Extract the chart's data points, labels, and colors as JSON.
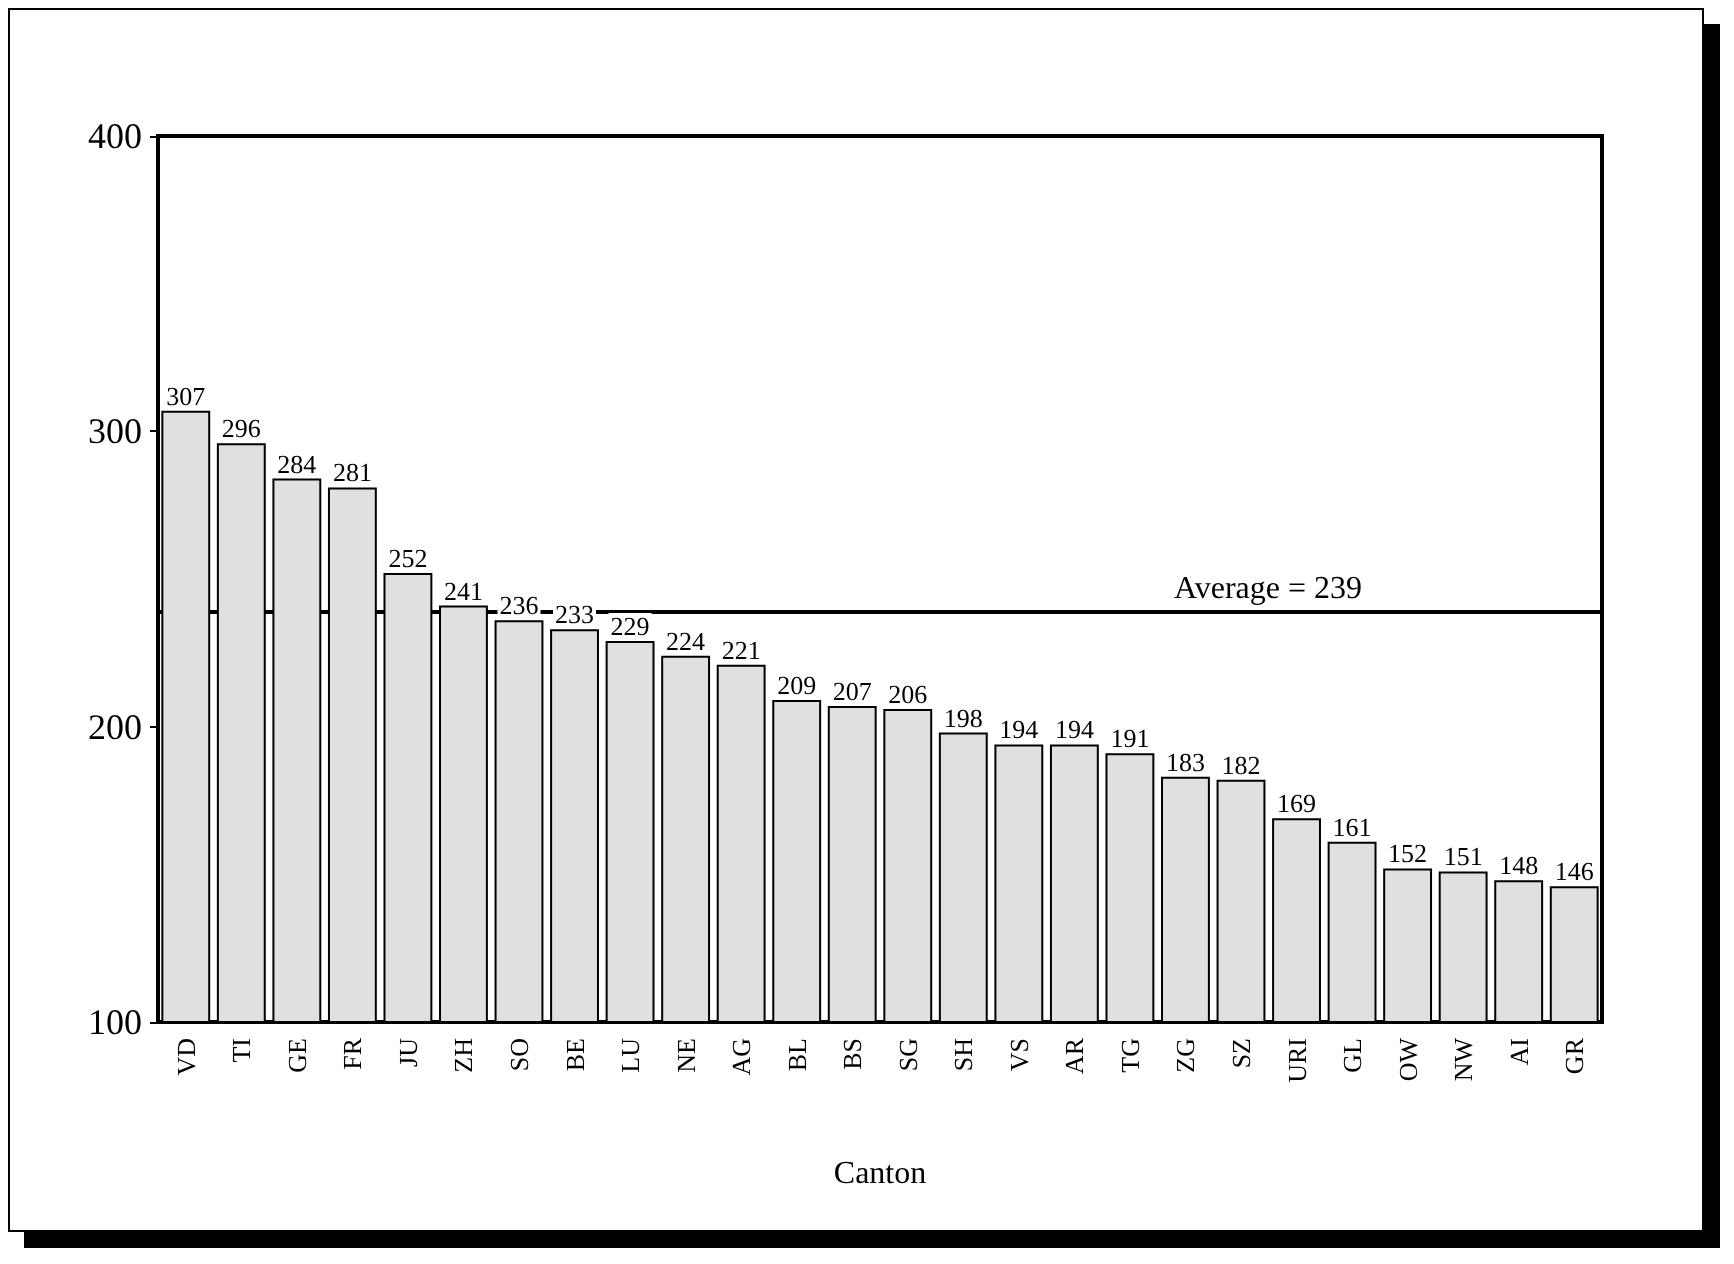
{
  "chart_data": {
    "type": "bar",
    "xlabel": "Canton",
    "categories": [
      "VD",
      "TI",
      "GE",
      "FR",
      "JU",
      "ZH",
      "SO",
      "BE",
      "LU",
      "NE",
      "AG",
      "BL",
      "BS",
      "SG",
      "SH",
      "VS",
      "AR",
      "TG",
      "ZG",
      "SZ",
      "URI",
      "GL",
      "OW",
      "NW",
      "AI",
      "GR"
    ],
    "values": [
      307,
      296,
      284,
      281,
      252,
      241,
      236,
      233,
      229,
      224,
      221,
      209,
      207,
      206,
      198,
      194,
      194,
      191,
      183,
      182,
      169,
      161,
      152,
      151,
      148,
      146
    ],
    "color": "#e0e0e0",
    "ylim": [
      100,
      400
    ],
    "yticks": [
      100,
      200,
      300,
      400
    ],
    "grid": false,
    "data_labels": true,
    "ref_lines": [
      {
        "axis": "y",
        "value": 239,
        "label": "Average = 239",
        "color": "#000000",
        "line_style": "solid"
      }
    ]
  }
}
